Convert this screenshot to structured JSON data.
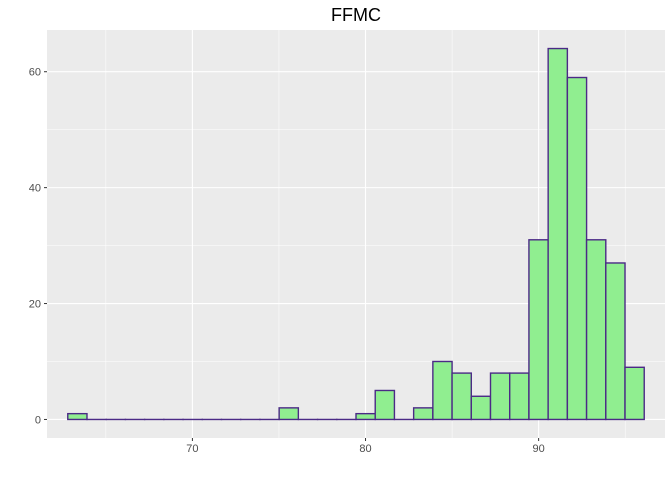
{
  "chart_data": {
    "type": "bar",
    "title": "FFMC",
    "xlabel": "",
    "ylabel": "",
    "xlim": [
      61.6,
      97.3
    ],
    "ylim": [
      -3.2,
      67.2
    ],
    "x_ticks": [
      70,
      80,
      90
    ],
    "y_ticks": [
      0,
      20,
      40,
      60
    ],
    "x_minor_ticks": [
      65,
      75,
      85,
      95
    ],
    "y_minor_ticks": [
      10,
      30,
      50
    ],
    "bin_edges": [
      62.8,
      63.91,
      65.02,
      66.13,
      67.24,
      68.35,
      69.46,
      70.57,
      71.68,
      72.79,
      73.9,
      75.01,
      76.12,
      77.23,
      78.34,
      79.45,
      80.56,
      81.67,
      82.78,
      83.89,
      85.0,
      86.11,
      87.22,
      88.33,
      89.44,
      90.55,
      91.66,
      92.77,
      93.88,
      94.99,
      96.1
    ],
    "values": [
      1,
      0,
      0,
      0,
      0,
      0,
      0,
      0,
      0,
      0,
      0,
      2,
      0,
      0,
      0,
      1,
      5,
      0,
      2,
      10,
      8,
      4,
      8,
      8,
      31,
      64,
      59,
      31,
      27,
      9
    ],
    "grid": true,
    "colors": {
      "panel_background": "#ebebeb",
      "grid": "#ffffff",
      "bar_fill": "#90ee90",
      "bar_stroke": "#4b2a86"
    }
  }
}
